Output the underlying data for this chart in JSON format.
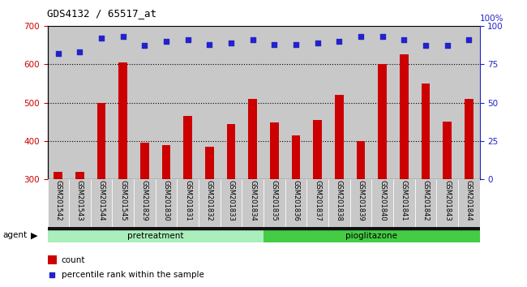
{
  "title": "GDS4132 / 65517_at",
  "categories": [
    "GSM201542",
    "GSM201543",
    "GSM201544",
    "GSM201545",
    "GSM201829",
    "GSM201830",
    "GSM201831",
    "GSM201832",
    "GSM201833",
    "GSM201834",
    "GSM201835",
    "GSM201836",
    "GSM201837",
    "GSM201838",
    "GSM201839",
    "GSM201840",
    "GSM201841",
    "GSM201842",
    "GSM201843",
    "GSM201844"
  ],
  "bar_values": [
    320,
    320,
    500,
    605,
    395,
    390,
    465,
    385,
    445,
    510,
    448,
    415,
    455,
    520,
    400,
    600,
    625,
    550,
    450,
    510
  ],
  "percentile_values": [
    82,
    83,
    92,
    93,
    87,
    90,
    91,
    88,
    89,
    91,
    88,
    88,
    89,
    90,
    93,
    93,
    91,
    87,
    87,
    91
  ],
  "pretreatment_count": 10,
  "pioglitazone_count": 10,
  "ylim_left": [
    300,
    700
  ],
  "ylim_right": [
    0,
    100
  ],
  "yticks_left": [
    300,
    400,
    500,
    600,
    700
  ],
  "yticks_right": [
    0,
    25,
    50,
    75,
    100
  ],
  "bar_color": "#cc0000",
  "dot_color": "#2222cc",
  "pretreatment_color": "#aaeebb",
  "pioglitazone_color": "#44cc44",
  "bg_color": "#c8c8c8",
  "left_ylabel_color": "#cc0000",
  "right_ylabel_color": "#2222cc",
  "legend_bar_label": "count",
  "legend_dot_label": "percentile rank within the sample"
}
